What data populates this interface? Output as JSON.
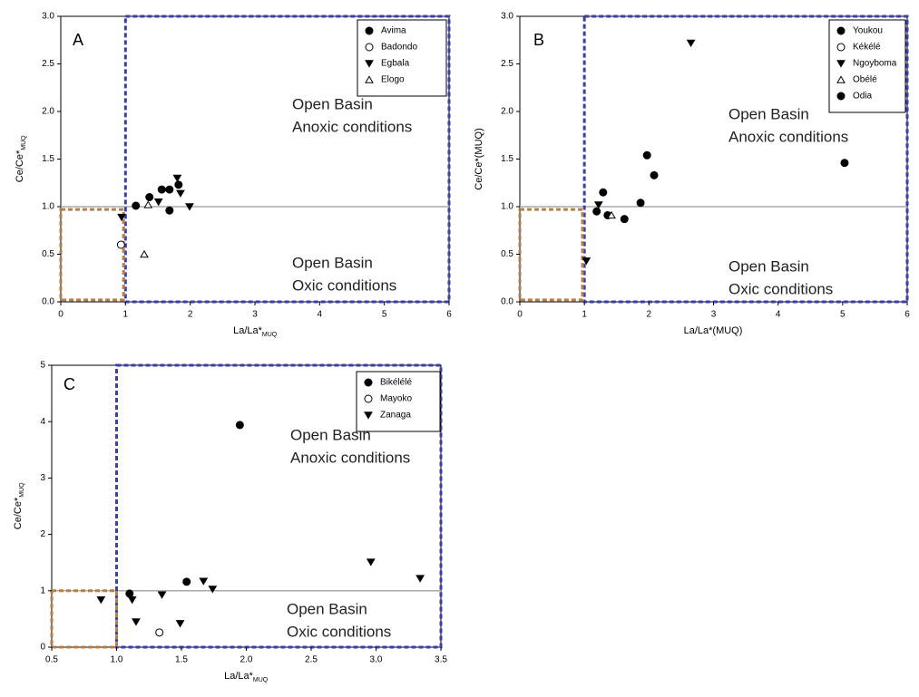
{
  "chart_data": [
    {
      "type": "scatter",
      "panel_label": "A",
      "xlabel": "La/La*",
      "xlabel_sub": "MUQ",
      "ylabel": "Ce/Ce*",
      "ylabel_sub": "MUQ",
      "xlim": [
        0,
        6
      ],
      "ylim": [
        0,
        3
      ],
      "xticks": [
        0,
        1,
        2,
        3,
        4,
        5,
        6
      ],
      "yticks": [
        {
          "value": 0,
          "label": "0.0"
        },
        0.5,
        {
          "value": 1,
          "label": "1.0"
        },
        1.5,
        {
          "value": 2,
          "label": "2.0"
        },
        2.5,
        {
          "value": 3,
          "label": "3.0"
        }
      ],
      "hline": 1,
      "regions": [
        {
          "xlim": [
            1,
            6
          ],
          "ylim": [
            0,
            3
          ],
          "color": "#3b3fa8"
        },
        {
          "xlim": [
            0,
            0.97
          ],
          "ylim": [
            0.02,
            0.97
          ],
          "color": "#b87f45"
        }
      ],
      "annotations": [
        [
          "Open Basin",
          "Anoxic conditions"
        ],
        [
          "Open Basin",
          "Oxic conditions"
        ]
      ],
      "series": [
        {
          "name": "Avima",
          "marker": "circle",
          "filled": true,
          "color": "#000000",
          "x": [
            1.16,
            1.37,
            1.56,
            1.68,
            1.68,
            1.82
          ],
          "values": [
            1.01,
            1.1,
            1.18,
            1.18,
            0.96,
            1.23
          ]
        },
        {
          "name": "Badondo",
          "marker": "circle",
          "filled": false,
          "color": "#000000",
          "x": [
            0.93
          ],
          "values": [
            0.6
          ]
        },
        {
          "name": "Egbala",
          "marker": "triangle-down",
          "filled": true,
          "color": "#000000",
          "x": [
            0.94,
            1.51,
            1.8,
            1.85,
            1.99
          ],
          "values": [
            0.89,
            1.05,
            1.3,
            1.14,
            1.0
          ]
        },
        {
          "name": "Elogo",
          "marker": "triangle-up",
          "filled": false,
          "color": "#000000",
          "x": [
            1.35,
            1.29
          ],
          "values": [
            1.02,
            0.5
          ]
        }
      ]
    },
    {
      "type": "scatter",
      "panel_label": "B",
      "xlabel": "La/La*(MUQ)",
      "ylabel": "Ce/Ce*(MUQ)",
      "xlim": [
        0,
        6
      ],
      "ylim": [
        0,
        3
      ],
      "xticks": [
        0,
        1,
        2,
        3,
        4,
        5,
        6
      ],
      "yticks": [
        {
          "value": 0,
          "label": "0.0"
        },
        0.5,
        {
          "value": 1,
          "label": "1.0"
        },
        1.5,
        {
          "value": 2,
          "label": "2.0"
        },
        2.5,
        {
          "value": 3,
          "label": "3.0"
        }
      ],
      "hline": 1,
      "regions": [
        {
          "xlim": [
            1,
            6
          ],
          "ylim": [
            0,
            3
          ],
          "color": "#3b3fa8"
        },
        {
          "xlim": [
            0,
            0.97
          ],
          "ylim": [
            0.02,
            0.97
          ],
          "color": "#b87f45"
        }
      ],
      "annotations": [
        [
          "Open Basin",
          "Anoxic conditions"
        ],
        [
          "Open Basin",
          "Oxic conditions"
        ]
      ],
      "series": [
        {
          "name": "Youkou",
          "marker": "circle",
          "filled": true,
          "color": "#000000",
          "x": [
            1.29,
            1.19,
            1.36,
            1.62,
            1.87,
            1.97,
            2.08
          ],
          "values": [
            1.15,
            0.95,
            0.91,
            0.87,
            1.04,
            1.54,
            1.33
          ]
        },
        {
          "name": "Kékélé",
          "marker": "circle",
          "filled": false,
          "color": "#000000",
          "x": [],
          "values": []
        },
        {
          "name": "Ngoyboma",
          "marker": "triangle-down",
          "filled": true,
          "color": "#000000",
          "x": [
            1.03,
            1.22,
            2.65
          ],
          "values": [
            0.43,
            1.02,
            2.72
          ]
        },
        {
          "name": "Obélé",
          "marker": "triangle-up",
          "filled": false,
          "color": "#000000",
          "x": [
            1.42
          ],
          "values": [
            0.91
          ]
        },
        {
          "name": "Odia",
          "marker": "circle",
          "filled": true,
          "color": "#000000",
          "x": [
            5.03
          ],
          "values": [
            1.46
          ]
        }
      ]
    },
    {
      "type": "scatter",
      "panel_label": "C",
      "xlabel": "La/La*",
      "xlabel_sub": "MUQ",
      "ylabel": "Ce/Ce*",
      "ylabel_sub": "MUQ",
      "xlim": [
        0.5,
        3.5
      ],
      "ylim": [
        0,
        5
      ],
      "xticks": [
        0.5,
        {
          "value": 1,
          "label": "1.0"
        },
        1.5,
        {
          "value": 2,
          "label": "2.0"
        },
        2.5,
        {
          "value": 3,
          "label": "3.0"
        },
        3.5
      ],
      "yticks": [
        0,
        1,
        2,
        3,
        4,
        5
      ],
      "hline": 1,
      "regions": [
        {
          "xlim": [
            1,
            3.5
          ],
          "ylim": [
            0,
            5
          ],
          "color": "#3b3fa8"
        },
        {
          "xlim": [
            0.5,
            1
          ],
          "ylim": [
            0,
            1
          ],
          "color": "#b87f45"
        }
      ],
      "annotations": [
        [
          "Open Basin",
          "Anoxic conditions"
        ],
        [
          "Open Basin",
          "Oxic conditions"
        ]
      ],
      "series": [
        {
          "name": "Bikélélé",
          "marker": "circle",
          "filled": true,
          "color": "#000000",
          "x": [
            1.1,
            1.54,
            1.95
          ],
          "values": [
            0.95,
            1.16,
            3.94
          ]
        },
        {
          "name": "Mayoko",
          "marker": "circle",
          "filled": false,
          "color": "#000000",
          "x": [
            1.33
          ],
          "values": [
            0.26
          ]
        },
        {
          "name": "Zanaga",
          "marker": "triangle-down",
          "filled": true,
          "color": "#000000",
          "x": [
            0.88,
            1.12,
            1.15,
            1.35,
            1.49,
            1.67,
            1.74,
            2.96,
            3.34
          ],
          "values": [
            0.84,
            0.84,
            0.45,
            0.93,
            0.42,
            1.17,
            1.03,
            1.51,
            1.22
          ]
        }
      ]
    }
  ]
}
